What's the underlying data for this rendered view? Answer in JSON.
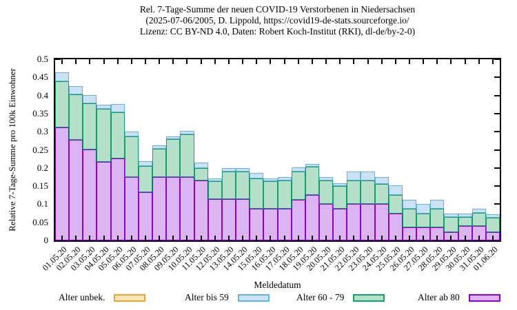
{
  "title": {
    "line1": "Rel. 7-Tage-Summe der neuen COVID-19 Verstorbenen in Niedersachsen",
    "line2": "(2025-07-06/2005, D. Lippold, https://covid19-de-stats.sourceforge.io/",
    "line3": "Lizenz: CC BY-ND 4.0, Daten: Robert Koch-Institut (RKI), dl-de/by-2-0)"
  },
  "chart_data": {
    "type": "bar",
    "stacked": true,
    "title": "Rel. 7-Tage-Summe der neuen COVID-19 Verstorbenen in Niedersachsen",
    "xlabel": "Meldedatum",
    "ylabel": "Relative 7-Tage-Summe pro 100k Einwohner",
    "ylim": [
      0,
      0.5
    ],
    "ytick_step": 0.05,
    "grid": false,
    "legend_position": "bottom",
    "categories": [
      "01.05.20",
      "02.05.20",
      "03.05.20",
      "04.05.20",
      "05.05.20",
      "06.05.20",
      "07.05.20",
      "08.05.20",
      "09.05.20",
      "10.05.20",
      "11.05.20",
      "12.05.20",
      "13.05.20",
      "14.05.20",
      "15.05.20",
      "16.05.20",
      "17.05.20",
      "18.05.20",
      "19.05.20",
      "20.05.20",
      "21.05.20",
      "22.05.20",
      "23.05.20",
      "24.05.20",
      "25.05.20",
      "26.05.20",
      "27.05.20",
      "28.05.20",
      "29.05.20",
      "30.05.20",
      "31.05.20",
      "01.06.20"
    ],
    "series": [
      {
        "name": "Alter ab 80",
        "fill": "#ddb4f2",
        "border": "#8f00d2",
        "values": [
          0.312,
          0.278,
          0.251,
          0.216,
          0.227,
          0.174,
          0.133,
          0.175,
          0.174,
          0.174,
          0.165,
          0.114,
          0.115,
          0.115,
          0.087,
          0.087,
          0.088,
          0.112,
          0.126,
          0.1,
          0.087,
          0.1,
          0.1,
          0.1,
          0.075,
          0.037,
          0.037,
          0.037,
          0.023,
          0.04,
          0.04,
          0.023
        ]
      },
      {
        "name": "Alter 60 - 79",
        "fill": "#b4e0ca",
        "border": "#109e6e",
        "values": [
          0.128,
          0.125,
          0.127,
          0.147,
          0.126,
          0.114,
          0.072,
          0.078,
          0.105,
          0.118,
          0.034,
          0.049,
          0.075,
          0.075,
          0.085,
          0.076,
          0.077,
          0.079,
          0.077,
          0.065,
          0.064,
          0.066,
          0.066,
          0.055,
          0.051,
          0.05,
          0.037,
          0.05,
          0.041,
          0.024,
          0.037,
          0.04
        ]
      },
      {
        "name": "Alter bis 59",
        "fill": "#cae2f4",
        "border": "#66b1e2",
        "values": [
          0.024,
          0.023,
          0.023,
          0.012,
          0.023,
          0.012,
          0.013,
          0.01,
          0.009,
          0.01,
          0.016,
          0.009,
          0.009,
          0.009,
          0.015,
          0.008,
          0.01,
          0.01,
          0.009,
          0.01,
          0.006,
          0.024,
          0.024,
          0.02,
          0.027,
          0.026,
          0.026,
          0.026,
          0.01,
          0.01,
          0.011,
          0.009
        ]
      },
      {
        "name": "Alter unbek.",
        "fill": "#fbe5ba",
        "border": "#eba42f",
        "values": [
          0,
          0,
          0,
          0,
          0,
          0,
          0,
          0,
          0,
          0,
          0,
          0,
          0,
          0,
          0,
          0,
          0,
          0,
          0,
          0,
          0,
          0,
          0,
          0,
          0,
          0,
          0,
          0,
          0,
          0,
          0,
          0
        ]
      }
    ],
    "legend": [
      {
        "label": "Alter unbek.",
        "fill": "#fbe5ba",
        "border": "#eba42f"
      },
      {
        "label": "Alter bis 59",
        "fill": "#cae2f4",
        "border": "#66b1e2"
      },
      {
        "label": "Alter 60 - 79",
        "fill": "#b4e0ca",
        "border": "#109e6e"
      },
      {
        "label": "Alter ab 80",
        "fill": "#ddb4f2",
        "border": "#8f00d2"
      }
    ]
  }
}
